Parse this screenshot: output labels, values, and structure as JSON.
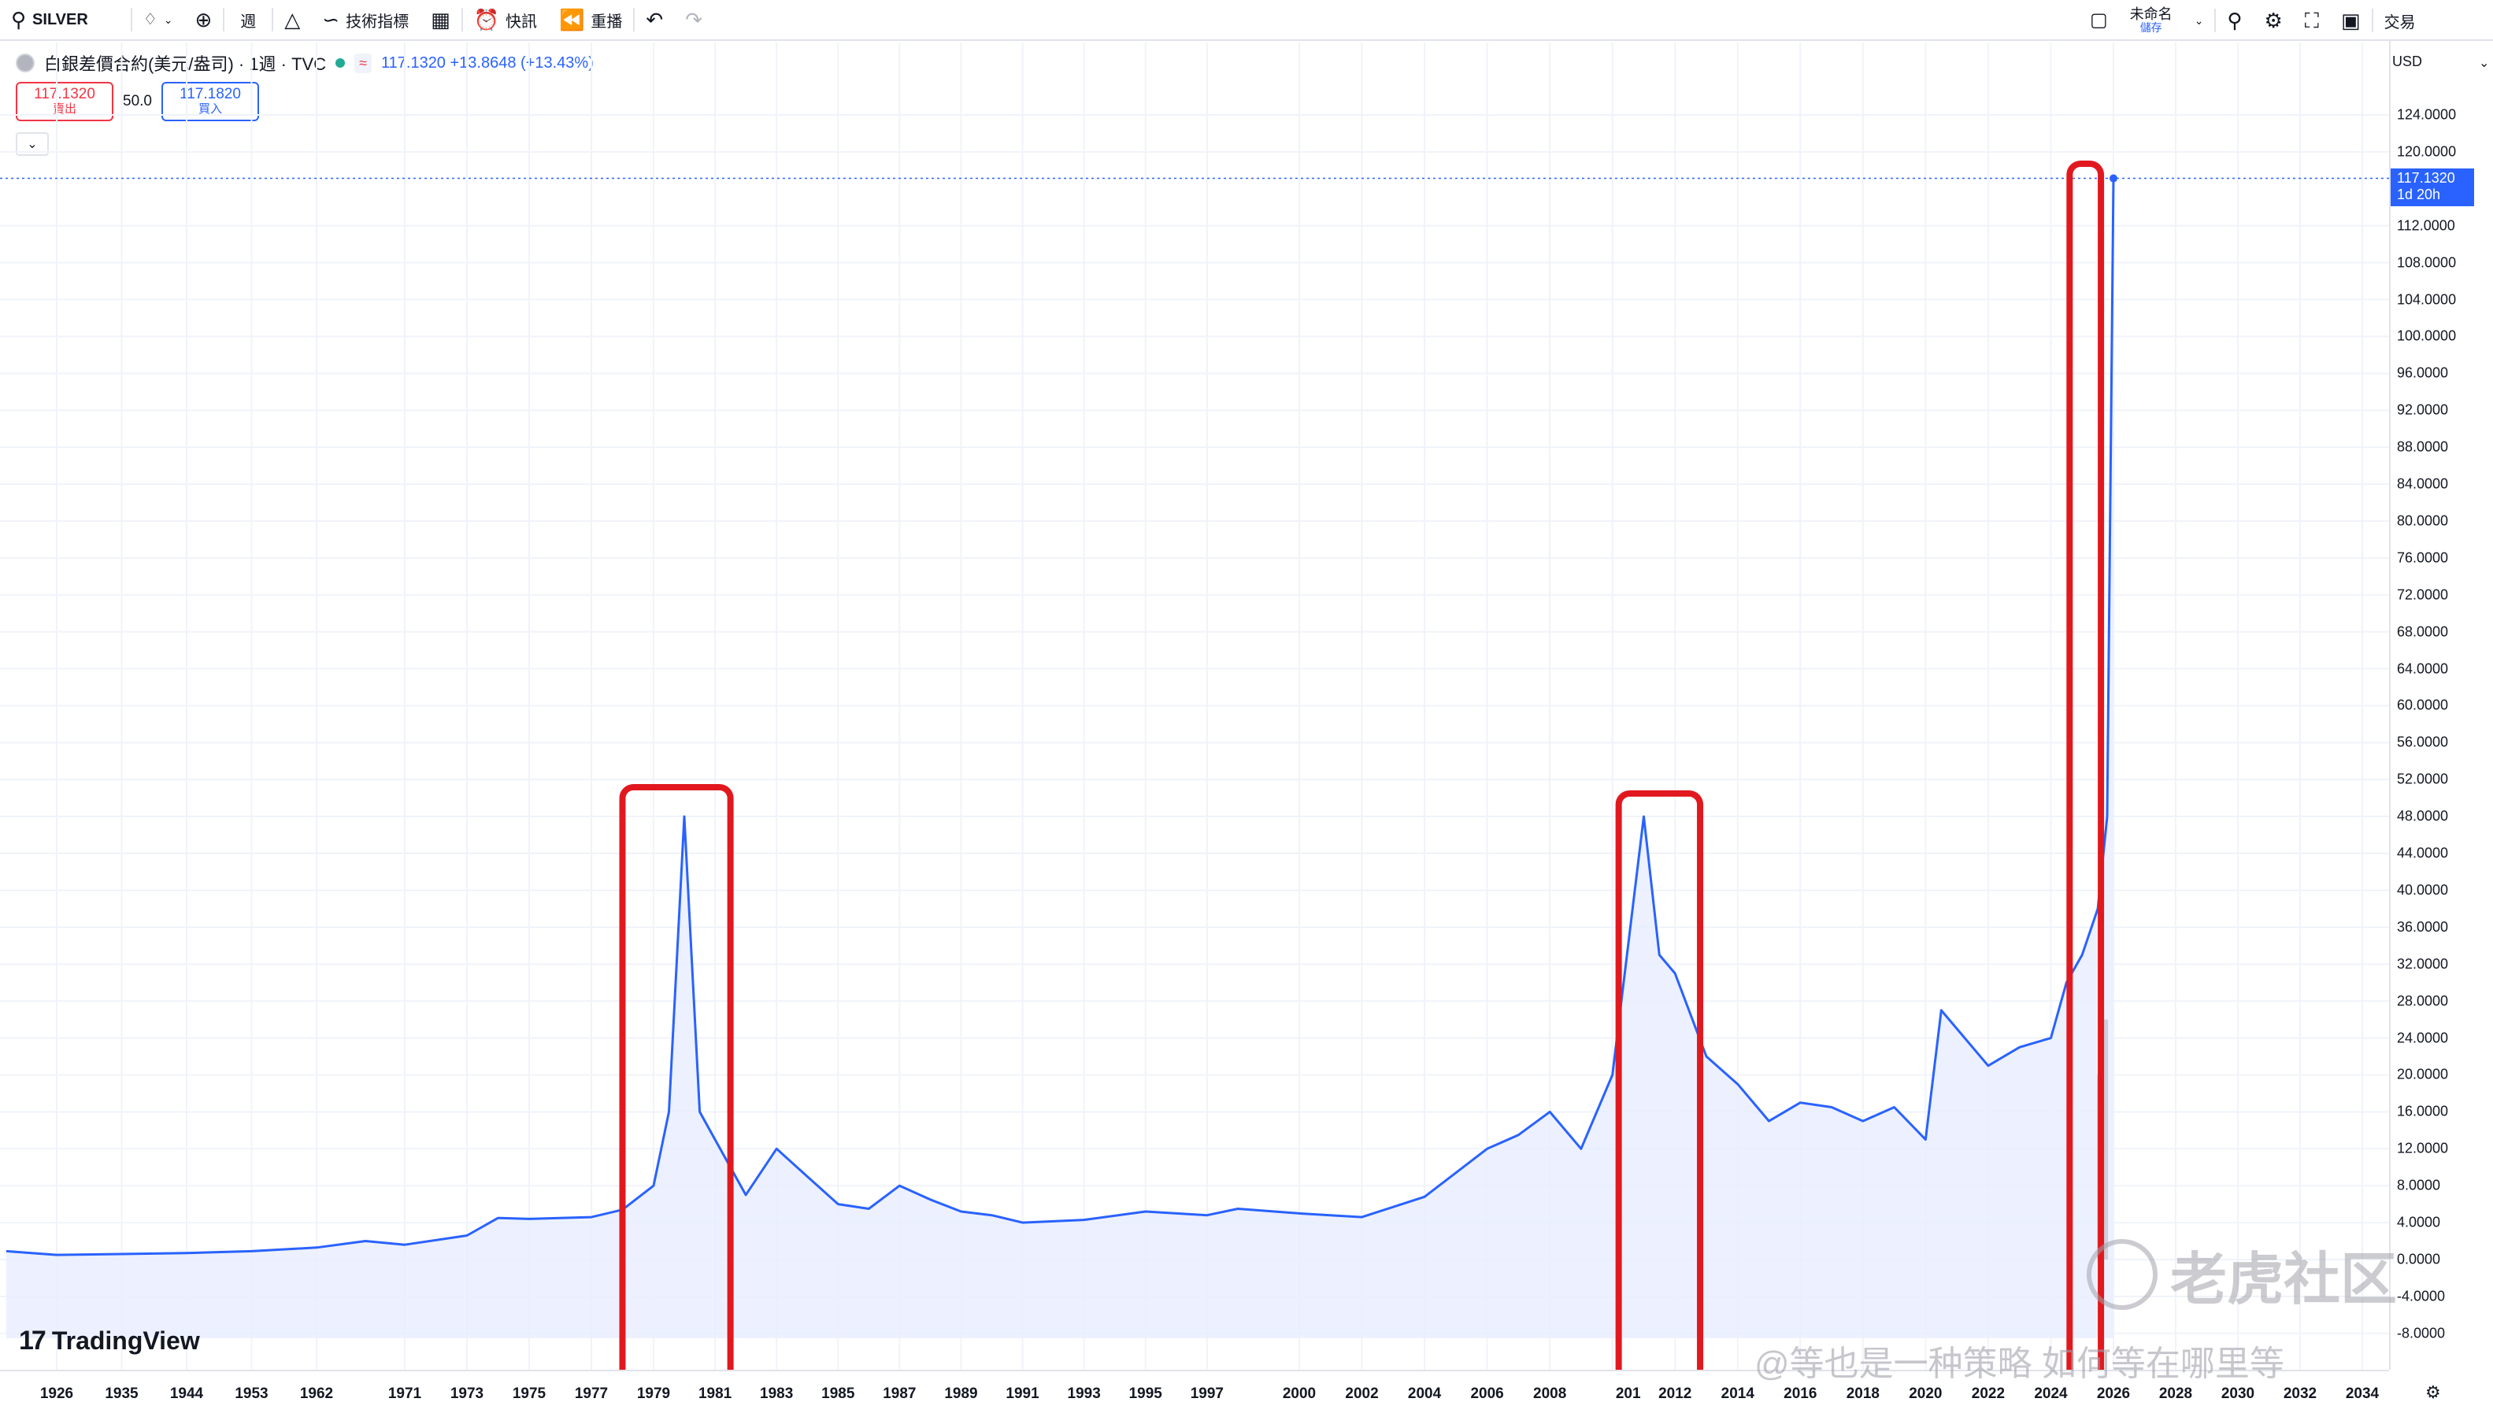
{
  "toolbar": {
    "symbol": "SILVER",
    "interval": "週",
    "indicators_label": "技術指標",
    "alerts_label": "快訊",
    "replay_label": "重播",
    "layout_name": "未命名",
    "layout_save": "儲存",
    "trade_label": "交易",
    "icons": [
      "search-icon",
      "diamond-icon",
      "plus-circle-icon",
      "bar-style-icon",
      "indicators-icon",
      "templates-icon",
      "alert-icon",
      "replay-icon",
      "undo-icon",
      "redo-icon",
      "layout-icon",
      "quick-search-icon",
      "settings-icon",
      "fullscreen-icon",
      "camera-icon"
    ]
  },
  "legend": {
    "title": "白銀差價合約(美元/盎司) · 1週 · TVC",
    "approx": "≈",
    "price_change": "117.1320 +13.8648 (+13.43%)"
  },
  "trade": {
    "sell_price": "117.1320",
    "sell_label": "賣出",
    "spread": "50.0",
    "buy_price": "117.1820",
    "buy_label": "買入"
  },
  "price_axis": {
    "currency": "USD",
    "last_price": "117.1320",
    "countdown": "1d 20h"
  },
  "branding": {
    "tradingview": "TradingView",
    "watermark": "老虎社区",
    "author": "@等也是一种策略 如何等在哪里等"
  },
  "colors": {
    "line": "#2962ff",
    "fill": "#e8eeff",
    "highlight": "#e1191e",
    "bars": "#b2b5be"
  },
  "chart_data": {
    "type": "line",
    "title": "白銀差價合約(美元/盎司) · 1週 · TVC",
    "xlabel": "",
    "ylabel": "",
    "ylim": [
      -9.5,
      128
    ],
    "grid": true,
    "y_ticks": [
      "124.0000",
      "120.0000",
      "112.0000",
      "108.0000",
      "104.0000",
      "100.0000",
      "96.0000",
      "92.0000",
      "88.0000",
      "84.0000",
      "80.0000",
      "76.0000",
      "72.0000",
      "68.0000",
      "64.0000",
      "60.0000",
      "56.0000",
      "52.0000",
      "48.0000",
      "44.0000",
      "40.0000",
      "36.0000",
      "32.0000",
      "28.0000",
      "24.0000",
      "20.0000",
      "16.0000",
      "12.0000",
      "8.0000",
      "4.0000",
      "0.0000",
      "-4.0000",
      "-8.0000"
    ],
    "x_ticks": [
      "1926",
      "1935",
      "1944",
      "1953",
      "1962",
      "1971",
      "1973",
      "1975",
      "1977",
      "1979",
      "1981",
      "1983",
      "1985",
      "1987",
      "1989",
      "1991",
      "1993",
      "1995",
      "1997",
      "2000",
      "2002",
      "2004",
      "2006",
      "2008",
      "201",
      "2012",
      "2014",
      "2016",
      "2018",
      "2020",
      "2022",
      "2024",
      "2026",
      "2028",
      "2030",
      "2032",
      "2034"
    ],
    "series": [
      {
        "name": "",
        "x": [
          "1915",
          "1926",
          "1935",
          "1944",
          "1953",
          "1962",
          "1967",
          "1971",
          "1973",
          "1974",
          "1975",
          "1977",
          "1978",
          "1979",
          "1979.5",
          "1980",
          "1980.5",
          "1981",
          "1982",
          "1983",
          "1984",
          "1985",
          "1986",
          "1987",
          "1988",
          "1989",
          "1990",
          "1991",
          "1993",
          "1995",
          "1997",
          "1998",
          "2000",
          "2002",
          "2004",
          "2006",
          "2007",
          "2008",
          "2009",
          "2010",
          "2011",
          "2011.5",
          "2012",
          "2013",
          "2014",
          "2015",
          "2016",
          "2017",
          "2018",
          "2019",
          "2020",
          "2020.5",
          "2021",
          "2022",
          "2023",
          "2024",
          "2024.5",
          "2025",
          "2025.5",
          "2025.8",
          "2026"
        ],
        "values": [
          0.9,
          0.5,
          0.6,
          0.7,
          0.9,
          1.3,
          2.0,
          1.6,
          2.6,
          4.5,
          4.4,
          4.6,
          5.4,
          8.0,
          16.0,
          48.0,
          16.0,
          13.0,
          7.0,
          12.0,
          9.0,
          6.0,
          5.5,
          8.0,
          6.5,
          5.2,
          4.8,
          4.0,
          4.3,
          5.2,
          4.8,
          5.5,
          5.0,
          4.6,
          6.8,
          12.0,
          13.5,
          16.0,
          12.0,
          20.0,
          48.0,
          33.0,
          31.0,
          22.0,
          19.0,
          15.0,
          17.0,
          16.5,
          15.0,
          16.5,
          13.0,
          27.0,
          25.0,
          21.0,
          23.0,
          24.0,
          30.0,
          33.0,
          38.0,
          48.0,
          117.132
        ]
      }
    ],
    "highlight_boxes": [
      {
        "from": "1978",
        "to": "1981.5"
      },
      {
        "from": "2010.2",
        "to": "2012.8"
      },
      {
        "from": "2024.6",
        "to": "2025.6"
      }
    ],
    "annotations": [
      "117.1320",
      "1d 20h"
    ]
  }
}
